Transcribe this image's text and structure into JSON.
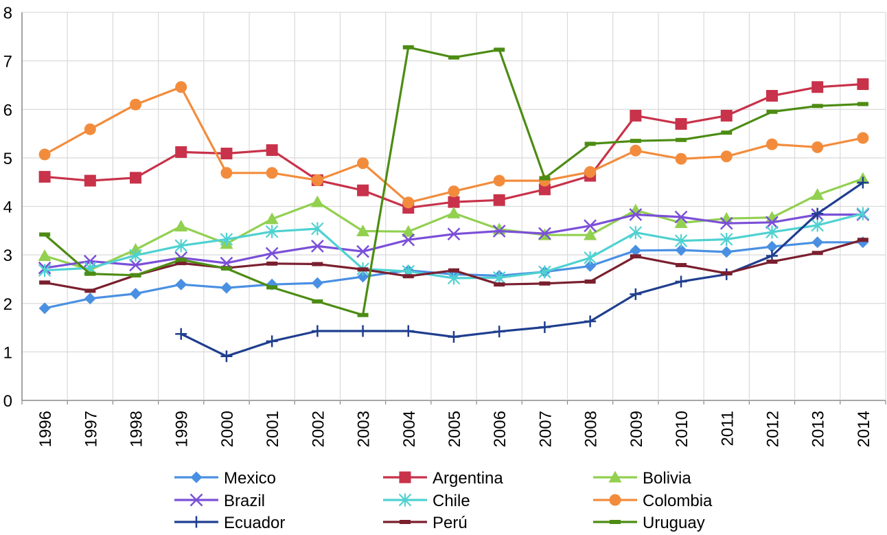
{
  "chart_data": {
    "type": "line",
    "title": "",
    "xlabel": "",
    "ylabel": "",
    "ylim": [
      0,
      8
    ],
    "yticks": [
      0,
      1,
      2,
      3,
      4,
      5,
      6,
      7,
      8
    ],
    "grid": true,
    "legend_position": "bottom",
    "categories": [
      "1996",
      "1997",
      "1998",
      "1999",
      "2000",
      "2001",
      "2002",
      "2003",
      "2004",
      "2005",
      "2006",
      "2007",
      "2008",
      "2009",
      "2010",
      "2011",
      "2012",
      "2013",
      "2014"
    ],
    "series": [
      {
        "name": "Mexico",
        "color": "#4A90E2",
        "marker": "diamond",
        "values": [
          1.9,
          2.1,
          2.2,
          2.39,
          2.32,
          2.39,
          2.42,
          2.55,
          2.68,
          2.6,
          2.57,
          2.65,
          2.77,
          3.09,
          3.1,
          3.06,
          3.17,
          3.26,
          3.26
        ]
      },
      {
        "name": "Argentina",
        "color": "#C8324A",
        "marker": "square",
        "values": [
          4.61,
          4.53,
          4.59,
          5.12,
          5.09,
          5.16,
          4.54,
          4.33,
          3.97,
          4.09,
          4.13,
          4.35,
          4.63,
          5.87,
          5.7,
          5.87,
          6.28,
          6.46,
          6.52
        ]
      },
      {
        "name": "Bolivia",
        "color": "#92D050",
        "marker": "triangle",
        "values": [
          2.98,
          2.69,
          3.11,
          3.59,
          3.23,
          3.74,
          4.09,
          3.49,
          3.48,
          3.86,
          3.53,
          3.41,
          3.41,
          3.92,
          3.66,
          3.75,
          3.77,
          4.24,
          4.57
        ]
      },
      {
        "name": "Brazil",
        "color": "#7B4FD8",
        "marker": "x",
        "values": [
          2.73,
          2.87,
          2.79,
          2.94,
          2.83,
          3.03,
          3.18,
          3.07,
          3.31,
          3.43,
          3.49,
          3.44,
          3.6,
          3.83,
          3.78,
          3.65,
          3.67,
          3.83,
          3.83
        ]
      },
      {
        "name": "Chile",
        "color": "#4FD1D1",
        "marker": "star",
        "values": [
          2.68,
          2.73,
          2.99,
          3.19,
          3.32,
          3.48,
          3.54,
          2.71,
          2.66,
          2.52,
          2.53,
          2.65,
          2.94,
          3.46,
          3.29,
          3.32,
          3.47,
          3.61,
          3.85
        ]
      },
      {
        "name": "Colombia",
        "color": "#F28C3C",
        "marker": "circle",
        "values": [
          5.07,
          5.59,
          6.1,
          6.46,
          4.69,
          4.69,
          4.54,
          4.89,
          4.08,
          4.31,
          4.53,
          4.53,
          4.71,
          5.15,
          4.98,
          5.03,
          5.28,
          5.22,
          5.41
        ]
      },
      {
        "name": "Ecuador",
        "color": "#1F3E8F",
        "marker": "plus",
        "values": [
          null,
          null,
          null,
          1.37,
          0.91,
          1.22,
          1.43,
          1.43,
          1.43,
          1.31,
          1.42,
          1.51,
          1.63,
          2.19,
          2.45,
          2.6,
          2.98,
          3.85,
          4.49
        ]
      },
      {
        "name": "Perú",
        "color": "#7A1F2E",
        "marker": "dash",
        "values": [
          2.43,
          2.26,
          2.58,
          2.83,
          2.73,
          2.82,
          2.81,
          2.7,
          2.56,
          2.68,
          2.39,
          2.41,
          2.45,
          2.97,
          2.79,
          2.62,
          2.86,
          3.04,
          3.31
        ]
      },
      {
        "name": "Uruguay",
        "color": "#4C8C13",
        "marker": "dash",
        "values": [
          3.42,
          2.61,
          2.58,
          2.9,
          2.72,
          2.33,
          2.04,
          1.76,
          7.28,
          7.07,
          7.23,
          4.58,
          5.29,
          5.35,
          5.37,
          5.52,
          5.95,
          6.07,
          6.11
        ]
      }
    ]
  }
}
